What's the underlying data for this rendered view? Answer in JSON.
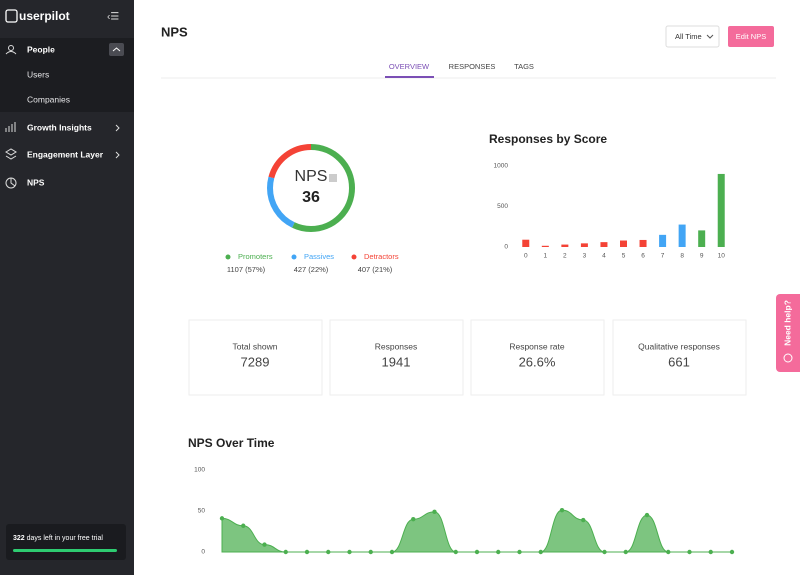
{
  "sidebar": {
    "logo": "userpilot",
    "nav": [
      {
        "label": "People"
      },
      {
        "label": "Users"
      },
      {
        "label": "Companies"
      },
      {
        "label": "Growth Insights"
      },
      {
        "label": "Engagement Layer"
      },
      {
        "label": "NPS"
      }
    ],
    "trial": {
      "days": 322,
      "text": "days left in your free trial"
    }
  },
  "header": {
    "title": "NPS",
    "range": "All Time",
    "button": "Edit NPS"
  },
  "tabs": [
    "OVERVIEW",
    "RESPONSES",
    "TAGS"
  ],
  "nps": {
    "label": "NPS",
    "score": 36
  },
  "stats": [
    {
      "label": "Total shown",
      "value": 7289
    },
    {
      "label": "Responses",
      "value": 1941
    },
    {
      "label": "Response rate",
      "value": "26.6%"
    },
    {
      "label": "Qualitative responses",
      "value": 661
    }
  ],
  "help": "Need help?",
  "chart_data": [
    {
      "type": "pie",
      "categories": [
        "Promoters",
        "Passives",
        "Detractors"
      ],
      "values": [
        57,
        22,
        21
      ],
      "value_labels": [
        "1107 (57%)",
        "427 (22%)",
        "407 (21%)"
      ],
      "colors": [
        "#4caf50",
        "#42a5f5",
        "#f44336"
      ]
    },
    {
      "type": "bar",
      "title": "Responses by Score",
      "categories": [
        "0",
        "1",
        "2",
        "3",
        "4",
        "5",
        "6",
        "7",
        "8",
        "9",
        "10"
      ],
      "values": [
        90,
        15,
        30,
        45,
        60,
        80,
        87,
        150,
        277,
        205,
        902
      ],
      "colors": [
        "#f44336",
        "#f44336",
        "#f44336",
        "#f44336",
        "#f44336",
        "#f44336",
        "#f44336",
        "#42a5f5",
        "#42a5f5",
        "#4caf50",
        "#4caf50"
      ],
      "ylim": [
        0,
        1000
      ],
      "yticks": [
        0,
        500,
        1000
      ]
    },
    {
      "type": "area",
      "title": "NPS Over Time",
      "categories": [
        null,
        null,
        null,
        null,
        null,
        null,
        null,
        null,
        null,
        null,
        null,
        null,
        null,
        null,
        null,
        null,
        null,
        null,
        null,
        null,
        null,
        null,
        null,
        null,
        null
      ],
      "values": [
        41,
        32,
        9,
        0,
        0,
        0,
        0,
        0,
        0,
        40,
        49,
        0,
        0,
        0,
        0,
        0,
        51,
        39,
        0,
        0,
        45,
        0,
        0,
        0,
        0
      ],
      "color": "#4caf50",
      "ylim": [
        0,
        100
      ],
      "yticks": [
        0,
        50,
        100
      ]
    }
  ]
}
